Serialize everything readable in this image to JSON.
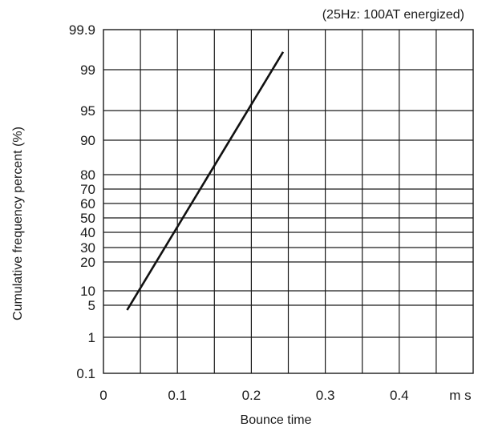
{
  "chart_data": {
    "type": "line",
    "title": "",
    "subtitle": "(25Hz: 100AT energized)",
    "xlabel": "Bounce time",
    "ylabel": "Cumulative frequency percent (%)",
    "x_unit": "m s",
    "x_ticks": [
      0,
      0.1,
      0.2,
      0.3,
      0.4
    ],
    "x_tick_labels": [
      "0",
      "0.1",
      "0.2",
      "0.3",
      "0.4"
    ],
    "xlim": [
      0,
      0.5
    ],
    "y_scale": "probability",
    "y_ticks": [
      0.1,
      1,
      5,
      10,
      20,
      30,
      40,
      50,
      60,
      70,
      80,
      90,
      95,
      99,
      99.9
    ],
    "y_tick_labels": [
      "0.1",
      "1",
      "5",
      "10",
      "20",
      "30",
      "40",
      "50",
      "60",
      "70",
      "80",
      "90",
      "95",
      "99",
      "99.9"
    ],
    "ylim": [
      0.1,
      99.9
    ],
    "grid": true,
    "series": [
      {
        "points": [
          {
            "x": 0.032,
            "y": 4.4
          },
          {
            "x": 0.243,
            "y": 99.4
          }
        ]
      }
    ]
  }
}
